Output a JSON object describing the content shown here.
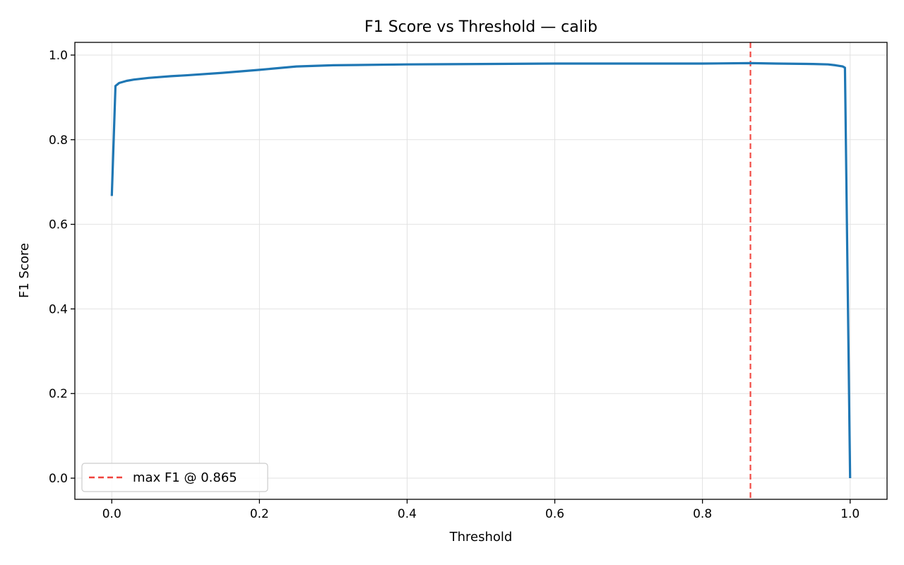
{
  "chart_data": {
    "type": "line",
    "title": "F1 Score vs Threshold — calib",
    "xlabel": "Threshold",
    "ylabel": "F1 Score",
    "xlim": [
      -0.05,
      1.05
    ],
    "ylim": [
      -0.05,
      1.03
    ],
    "xticks": [
      0.0,
      0.2,
      0.4,
      0.6,
      0.8,
      1.0
    ],
    "xtick_labels": [
      "0.0",
      "0.2",
      "0.4",
      "0.6",
      "0.8",
      "1.0"
    ],
    "yticks": [
      0.0,
      0.2,
      0.4,
      0.6,
      0.8,
      1.0
    ],
    "ytick_labels": [
      "0.0",
      "0.2",
      "0.4",
      "0.6",
      "0.8",
      "1.0"
    ],
    "grid": true,
    "legend_position": "lower-left",
    "series": [
      {
        "color": "#1f77b4",
        "x": [
          0.0,
          0.005,
          0.01,
          0.02,
          0.03,
          0.05,
          0.08,
          0.1,
          0.15,
          0.2,
          0.25,
          0.3,
          0.4,
          0.5,
          0.6,
          0.7,
          0.8,
          0.865,
          0.9,
          0.95,
          0.97,
          0.98,
          0.99,
          0.993,
          1.0
        ],
        "y": [
          0.667,
          0.927,
          0.934,
          0.939,
          0.942,
          0.946,
          0.95,
          0.952,
          0.958,
          0.965,
          0.973,
          0.976,
          0.978,
          0.979,
          0.98,
          0.98,
          0.98,
          0.981,
          0.98,
          0.979,
          0.978,
          0.976,
          0.973,
          0.97,
          0.0
        ]
      }
    ],
    "annotations": [
      {
        "type": "vline",
        "x": 0.865,
        "color": "#f0423c",
        "style": "dashed",
        "label": "max F1 @ 0.865"
      }
    ]
  }
}
